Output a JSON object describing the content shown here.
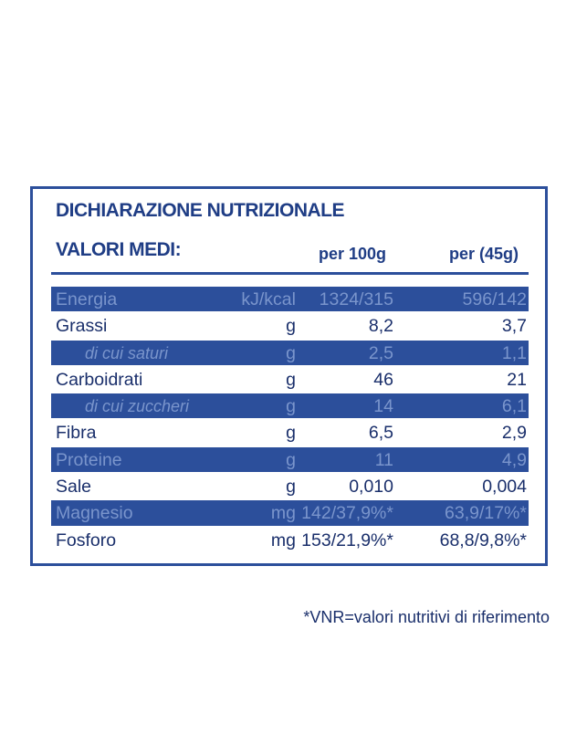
{
  "title": "DICHIARAZIONE NUTRIZIONALE",
  "subhead": "VALORI MEDI:",
  "columns": {
    "per100": "per 100g",
    "perPortion": "per (45g)"
  },
  "rows": [
    {
      "name": "Energia",
      "unit": "kJ/kcal",
      "v1": "1324/315",
      "v2": "596/142"
    },
    {
      "name": "Grassi",
      "unit": "g",
      "v1": "8,2",
      "v2": "3,7"
    },
    {
      "name": "di cui saturi",
      "unit": "g",
      "v1": "2,5",
      "v2": "1,1"
    },
    {
      "name": "Carboidrati",
      "unit": "g",
      "v1": "46",
      "v2": "21"
    },
    {
      "name": "di cui zuccheri",
      "unit": "g",
      "v1": "14",
      "v2": "6,1"
    },
    {
      "name": "Fibra",
      "unit": "g",
      "v1": "6,5",
      "v2": "2,9"
    },
    {
      "name": "Proteine",
      "unit": "g",
      "v1": "11",
      "v2": "4,9"
    },
    {
      "name": "Sale",
      "unit": "g",
      "v1": "0,010",
      "v2": "0,004"
    },
    {
      "name": "Magnesio",
      "unit": "mg",
      "v1": "142/37,9%*",
      "v2": "63,9/17%*"
    },
    {
      "name": "Fosforo",
      "unit": "mg",
      "v1": "153/21,9%*",
      "v2": "68,8/9,8%*"
    }
  ],
  "footnote": "*VNR=valori nutritivi di riferimento",
  "colors": {
    "accent": "#2c4f9b",
    "text": "#1a2f6b"
  }
}
